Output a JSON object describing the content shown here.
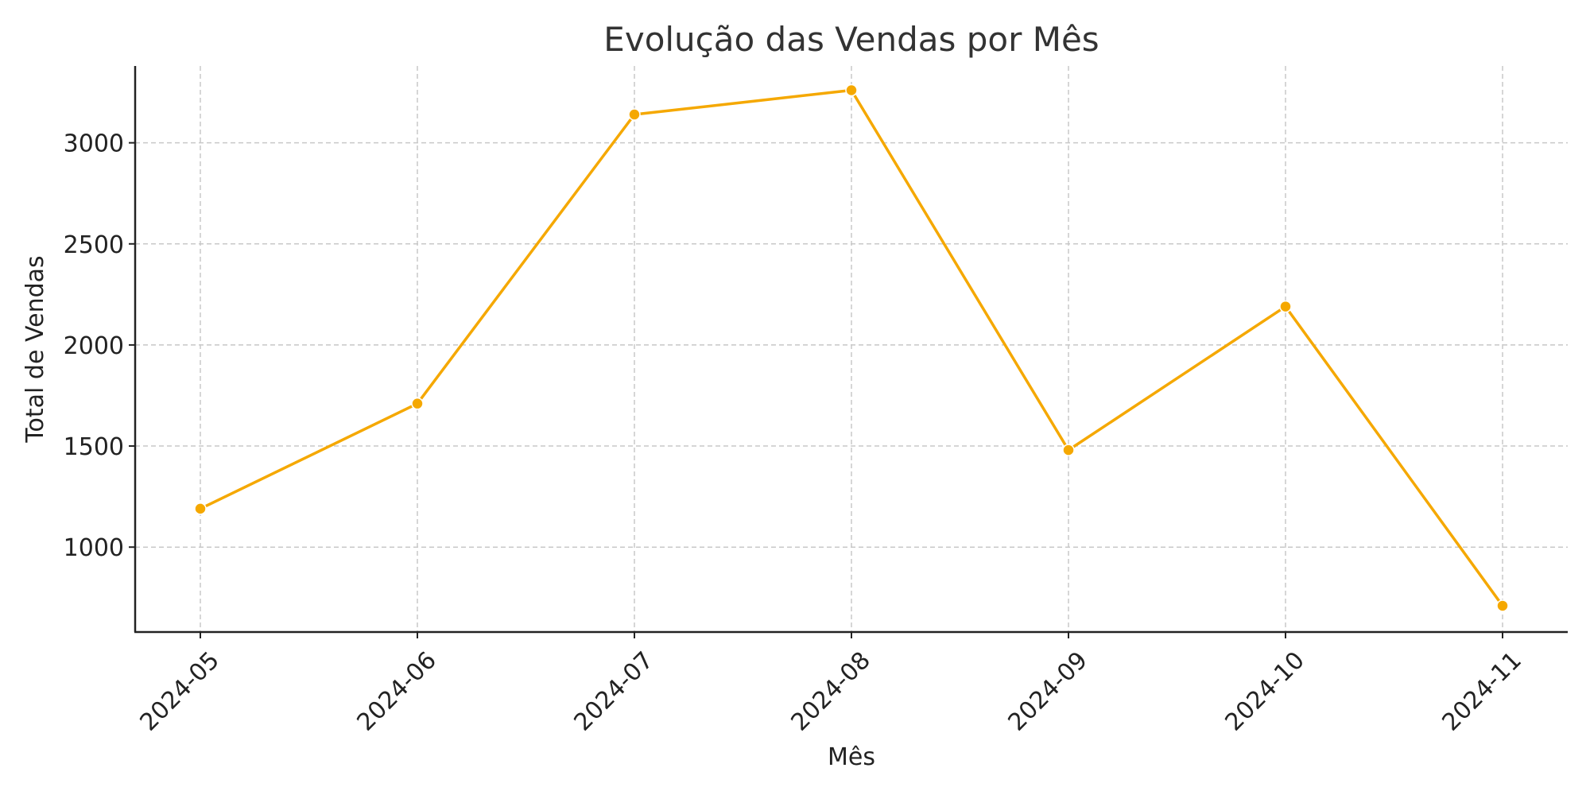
{
  "chart_data": {
    "type": "line",
    "title": "Evolução das Vendas por Mês",
    "xlabel": "Mês",
    "ylabel": "Total de Vendas",
    "categories": [
      "2024-05",
      "2024-06",
      "2024-07",
      "2024-08",
      "2024-09",
      "2024-10",
      "2024-11"
    ],
    "series": [
      {
        "values": [
          1190,
          1710,
          3140,
          3260,
          1480,
          2190,
          710
        ],
        "color": "#f5a800"
      }
    ],
    "yticks": [
      1000,
      1500,
      2000,
      2500,
      3000
    ],
    "ylim": [
      580,
      3380
    ],
    "grid": true,
    "marker": "circle"
  }
}
